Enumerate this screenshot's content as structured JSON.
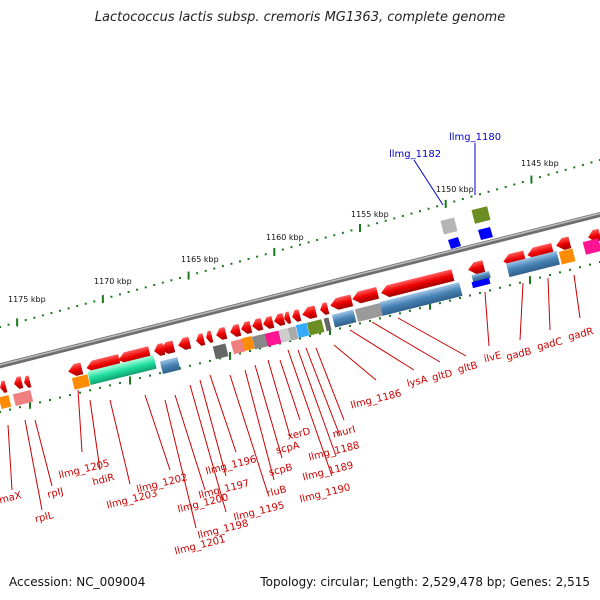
{
  "title": "Lactococcus lactis subsp. cremoris MG1363, complete genome",
  "accession_text": "Accession: NC_009004",
  "topology_text": "Topology: circular; Length: 2,529,478 bp; Genes: 2,515",
  "colors": {
    "backbone": "#7d7d7d",
    "tick": "#1a7a1a",
    "label_red": "#cc0000",
    "label_blue": "#0000cc",
    "arrow_red": "#e60000"
  },
  "scale_labels": [
    {
      "text": "1175 kbp"
    },
    {
      "text": "1170 kbp"
    },
    {
      "text": "1165 kbp"
    },
    {
      "text": "1160 kbp"
    },
    {
      "text": "1155 kbp"
    },
    {
      "text": "1150 kbp"
    },
    {
      "text": "1145 kbp"
    }
  ],
  "gene_labels": [
    {
      "text": "llmg_1180",
      "color": "blue"
    },
    {
      "text": "llmg_1182",
      "color": "blue"
    },
    {
      "text": "rmaX",
      "color": "red"
    },
    {
      "text": "rplL",
      "color": "red"
    },
    {
      "text": "rpIJ",
      "color": "red"
    },
    {
      "text": "llmg_1205",
      "color": "red"
    },
    {
      "text": "hdiR",
      "color": "red"
    },
    {
      "text": "llmg_1203",
      "color": "red"
    },
    {
      "text": "llmg_1202",
      "color": "red"
    },
    {
      "text": "llmg_1201",
      "color": "red"
    },
    {
      "text": "llmg_1200",
      "color": "red"
    },
    {
      "text": "llmg_1198",
      "color": "red"
    },
    {
      "text": "llmg_1197",
      "color": "red"
    },
    {
      "text": "llmg_1196",
      "color": "red"
    },
    {
      "text": "llmg_1195",
      "color": "red"
    },
    {
      "text": "rluB",
      "color": "red"
    },
    {
      "text": "scpB",
      "color": "red"
    },
    {
      "text": "scpA",
      "color": "red"
    },
    {
      "text": "xerD",
      "color": "red"
    },
    {
      "text": "llmg_1190",
      "color": "red"
    },
    {
      "text": "llmg_1189",
      "color": "red"
    },
    {
      "text": "llmg_1188",
      "color": "red"
    },
    {
      "text": "murI",
      "color": "red"
    },
    {
      "text": "llmg_1186",
      "color": "red"
    },
    {
      "text": "lysA",
      "color": "red"
    },
    {
      "text": "gltD",
      "color": "red"
    },
    {
      "text": "gltB",
      "color": "red"
    },
    {
      "text": "ilvE",
      "color": "red"
    },
    {
      "text": "gadB",
      "color": "red"
    },
    {
      "text": "gadC",
      "color": "red"
    },
    {
      "text": "gadR",
      "color": "red"
    }
  ],
  "cog_colors": [
    "#ff8c00",
    "#40e0a0",
    "#4682b4",
    "#666666",
    "#ff69b4",
    "#ff80a0",
    "#aaaaaa",
    "#dddddd",
    "#33aaff",
    "#6b8e23",
    "#888888",
    "#0000ff",
    "#f08080",
    "#00c0c0"
  ]
}
